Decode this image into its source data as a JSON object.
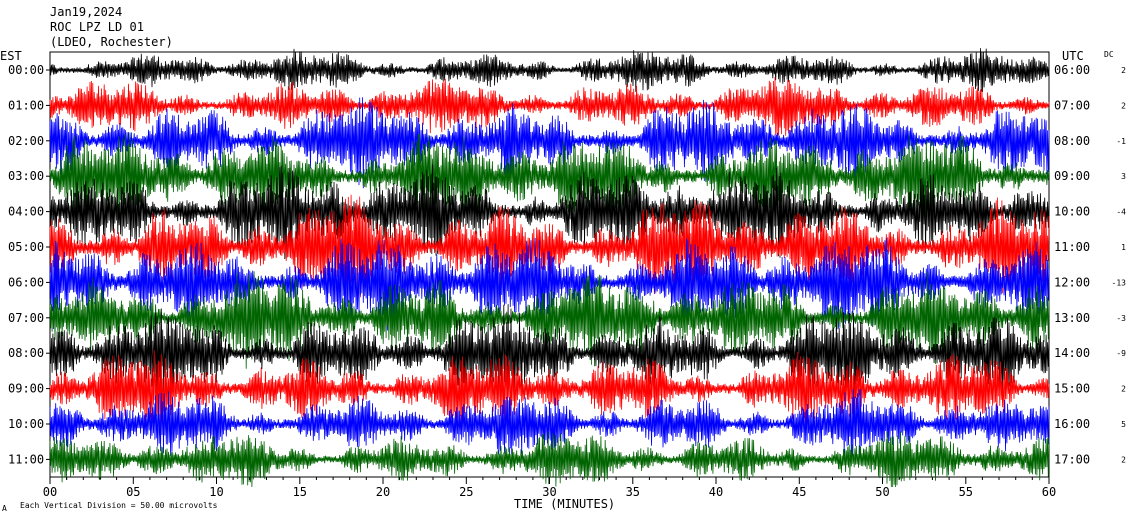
{
  "header": {
    "date": "Jan19,2024",
    "station": "ROC LPZ LD 01",
    "location": "(LDEO, Rochester)"
  },
  "left_tz": "EST",
  "right_tz": "UTC",
  "dc_header": "DC",
  "footer": {
    "scale_note": "Each Vertical Division =   50.00 microvolts",
    "logo_mark": "A"
  },
  "chart_data": {
    "type": "line",
    "title": "",
    "xlabel": "TIME (MINUTES)",
    "ylabel": "",
    "x_ticks": [
      "00",
      "05",
      "10",
      "15",
      "20",
      "25",
      "30",
      "35",
      "40",
      "45",
      "50",
      "55",
      "60"
    ],
    "xlim": [
      0,
      60
    ],
    "colors": {
      "black": "#000000",
      "red": "#ff0000",
      "blue": "#0000ff",
      "green": "#006400"
    },
    "rows": [
      {
        "local": "00:00",
        "utc": "06:00",
        "dc": "2",
        "color": "#000000",
        "amplitude": 0.55
      },
      {
        "local": "01:00",
        "utc": "07:00",
        "dc": "2",
        "color": "#ff0000",
        "amplitude": 0.75
      },
      {
        "local": "02:00",
        "utc": "08:00",
        "dc": "-1",
        "color": "#0000ff",
        "amplitude": 1.15
      },
      {
        "local": "03:00",
        "utc": "09:00",
        "dc": "3",
        "color": "#006400",
        "amplitude": 1.25
      },
      {
        "local": "04:00",
        "utc": "10:00",
        "dc": "-4",
        "color": "#000000",
        "amplitude": 1.3
      },
      {
        "local": "05:00",
        "utc": "11:00",
        "dc": "1",
        "color": "#ff0000",
        "amplitude": 1.35
      },
      {
        "local": "06:00",
        "utc": "12:00",
        "dc": "-13",
        "color": "#0000ff",
        "amplitude": 1.35
      },
      {
        "local": "07:00",
        "utc": "13:00",
        "dc": "-3",
        "color": "#006400",
        "amplitude": 1.3
      },
      {
        "local": "08:00",
        "utc": "14:00",
        "dc": "-9",
        "color": "#000000",
        "amplitude": 1.2
      },
      {
        "local": "09:00",
        "utc": "15:00",
        "dc": "2",
        "color": "#ff0000",
        "amplitude": 1.0
      },
      {
        "local": "10:00",
        "utc": "16:00",
        "dc": "5",
        "color": "#0000ff",
        "amplitude": 0.9
      },
      {
        "local": "11:00",
        "utc": "17:00",
        "dc": "2",
        "color": "#006400",
        "amplitude": 0.75
      }
    ]
  }
}
